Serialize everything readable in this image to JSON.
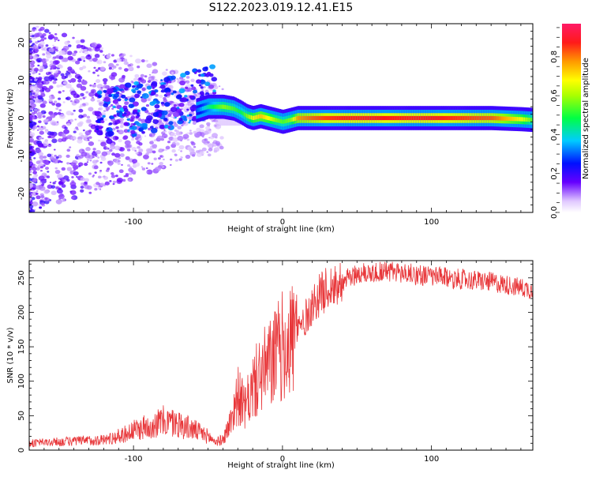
{
  "figure_title": "S122.2023.019.12.41.E15",
  "chart_data": [
    {
      "type": "heatmap",
      "xlabel": "Height of straight line (km)",
      "ylabel": "Frequency (Hz)",
      "xlim": [
        -170,
        168
      ],
      "ylim": [
        -25,
        25
      ],
      "x_ticks": [
        -100,
        0,
        100
      ],
      "y_ticks": [
        -20,
        -10,
        0,
        10,
        20
      ],
      "colorbar": {
        "label": "Normalized spectral amplitude",
        "range": [
          0,
          0.97
        ],
        "ticks": [
          0.0,
          0.2,
          0.4,
          0.6,
          0.8
        ]
      },
      "description_series": {
        "ridge_x": [
          -58,
          -50,
          -40,
          -33,
          -28,
          -24,
          -20,
          -15,
          -10,
          -5,
          0,
          5,
          10,
          20,
          40,
          60,
          80,
          100,
          120,
          140,
          160,
          168
        ],
        "ridge_freq": [
          2,
          3,
          3,
          2.5,
          1.5,
          0.5,
          0,
          0.5,
          0,
          -0.5,
          -1,
          -0.5,
          0,
          0,
          0,
          0,
          0,
          0,
          0,
          0,
          -0.3,
          -0.5
        ],
        "ridge_amplitude": [
          0.3,
          0.45,
          0.6,
          0.55,
          0.5,
          0.6,
          0.7,
          0.75,
          0.7,
          0.6,
          0.55,
          0.6,
          0.8,
          0.85,
          0.9,
          0.9,
          0.9,
          0.9,
          0.88,
          0.85,
          0.7,
          0.55
        ]
      },
      "grid": false
    },
    {
      "type": "line",
      "xlabel": "Height of straight line (km)",
      "ylabel": "SNR (10 * v/v)",
      "xlim": [
        -170,
        168
      ],
      "ylim": [
        0,
        275
      ],
      "x_ticks": [
        -100,
        0,
        100
      ],
      "y_ticks": [
        0,
        50,
        100,
        150,
        200,
        250
      ],
      "color": "#e8373a",
      "series": [
        {
          "x": [
            -170,
            -150,
            -140,
            -130,
            -120,
            -110,
            -100,
            -90,
            -80,
            -70,
            -60,
            -50,
            -45,
            -40,
            -35,
            -30,
            -25,
            -20,
            -15,
            -10,
            -5,
            0,
            5,
            10,
            15,
            20,
            25,
            30,
            40,
            50,
            60,
            70,
            80,
            90,
            100,
            110,
            120,
            130,
            140,
            150,
            160,
            168
          ],
          "y": [
            10,
            12,
            13,
            14,
            15,
            20,
            28,
            35,
            42,
            38,
            30,
            20,
            12,
            15,
            40,
            80,
            60,
            90,
            110,
            120,
            135,
            150,
            160,
            175,
            190,
            210,
            225,
            235,
            245,
            255,
            258,
            260,
            257,
            255,
            252,
            250,
            248,
            246,
            244,
            240,
            236,
            232
          ]
        }
      ],
      "grid": false
    }
  ]
}
